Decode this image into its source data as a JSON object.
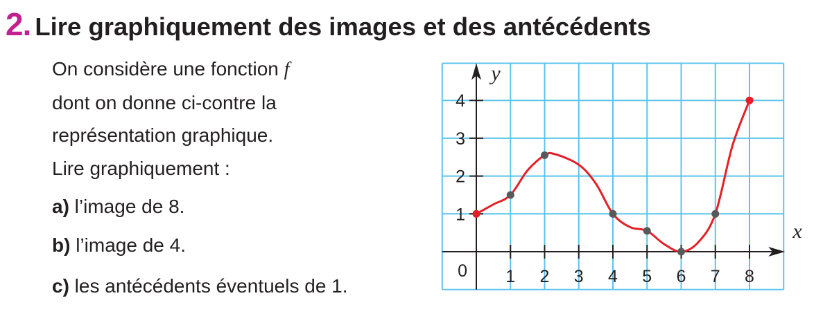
{
  "exercise": {
    "number": "2.",
    "title": "Lire graphiquement des images et des antécédents",
    "intro_lines": [
      "On considère une fonction ",
      "dont on donne ci-contre la",
      "représentation graphique.",
      "Lire graphiquement :"
    ],
    "function_name": "f",
    "questions": [
      {
        "label": "a)",
        "text": " l’image de 8."
      },
      {
        "label": "b)",
        "text": " l’image de 4."
      },
      {
        "label": "c)",
        "text": " les antécédents éventuels de 1."
      }
    ],
    "accent_color": "#c0218f"
  },
  "chart_data": {
    "type": "line",
    "xlabel": "x",
    "ylabel": "y",
    "origin_label": "0",
    "xlim": [
      -1,
      9
    ],
    "ylim": [
      -1,
      5
    ],
    "grid": true,
    "x_ticks": [
      "1",
      "2",
      "3",
      "4",
      "5",
      "6",
      "7",
      "8"
    ],
    "y_ticks": [
      "1",
      "2",
      "3",
      "4"
    ],
    "curve": [
      [
        0,
        1
      ],
      [
        0.5,
        1.25
      ],
      [
        1,
        1.5
      ],
      [
        1.5,
        2.15
      ],
      [
        2,
        2.55
      ],
      [
        2.3,
        2.58
      ],
      [
        3,
        2.3
      ],
      [
        3.5,
        1.8
      ],
      [
        4,
        1
      ],
      [
        4.5,
        0.65
      ],
      [
        5,
        0.55
      ],
      [
        5.5,
        0.2
      ],
      [
        6,
        0
      ],
      [
        6.5,
        0.25
      ],
      [
        7,
        1
      ],
      [
        7.5,
        2.8
      ],
      [
        8,
        4
      ]
    ],
    "marked_points": [
      [
        1,
        1.5
      ],
      [
        2,
        2.55
      ],
      [
        4,
        1
      ],
      [
        5,
        0.55
      ],
      [
        6,
        0
      ],
      [
        7,
        1
      ]
    ],
    "endpoints": [
      [
        0,
        1
      ],
      [
        8,
        4
      ]
    ],
    "colors": {
      "curve": "#e41f26",
      "grid": "#5bc4ec",
      "points": "#58595b",
      "endpoints": "#e41f26"
    }
  }
}
